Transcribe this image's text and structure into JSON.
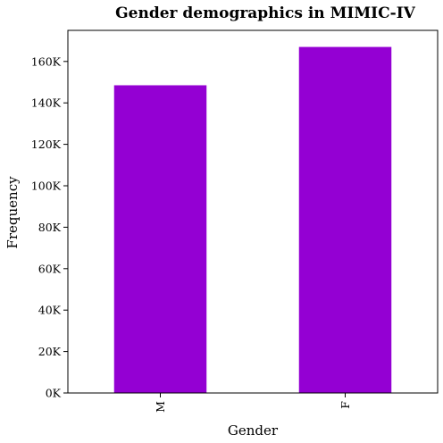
{
  "chart_data": {
    "type": "bar",
    "title": "Gender demographics in MIMIC-IV",
    "xlabel": "Gender",
    "ylabel": "Frequency",
    "categories": [
      "M",
      "F"
    ],
    "values": [
      148500,
      167000
    ],
    "ylim": [
      0,
      175000
    ],
    "yticks": [
      0,
      20000,
      40000,
      60000,
      80000,
      100000,
      120000,
      140000,
      160000
    ],
    "ytick_labels": [
      "0K",
      "20K",
      "40K",
      "60K",
      "80K",
      "100K",
      "120K",
      "140K",
      "160K"
    ],
    "bar_color": "#9400D3",
    "grid": false,
    "legend": "none"
  }
}
